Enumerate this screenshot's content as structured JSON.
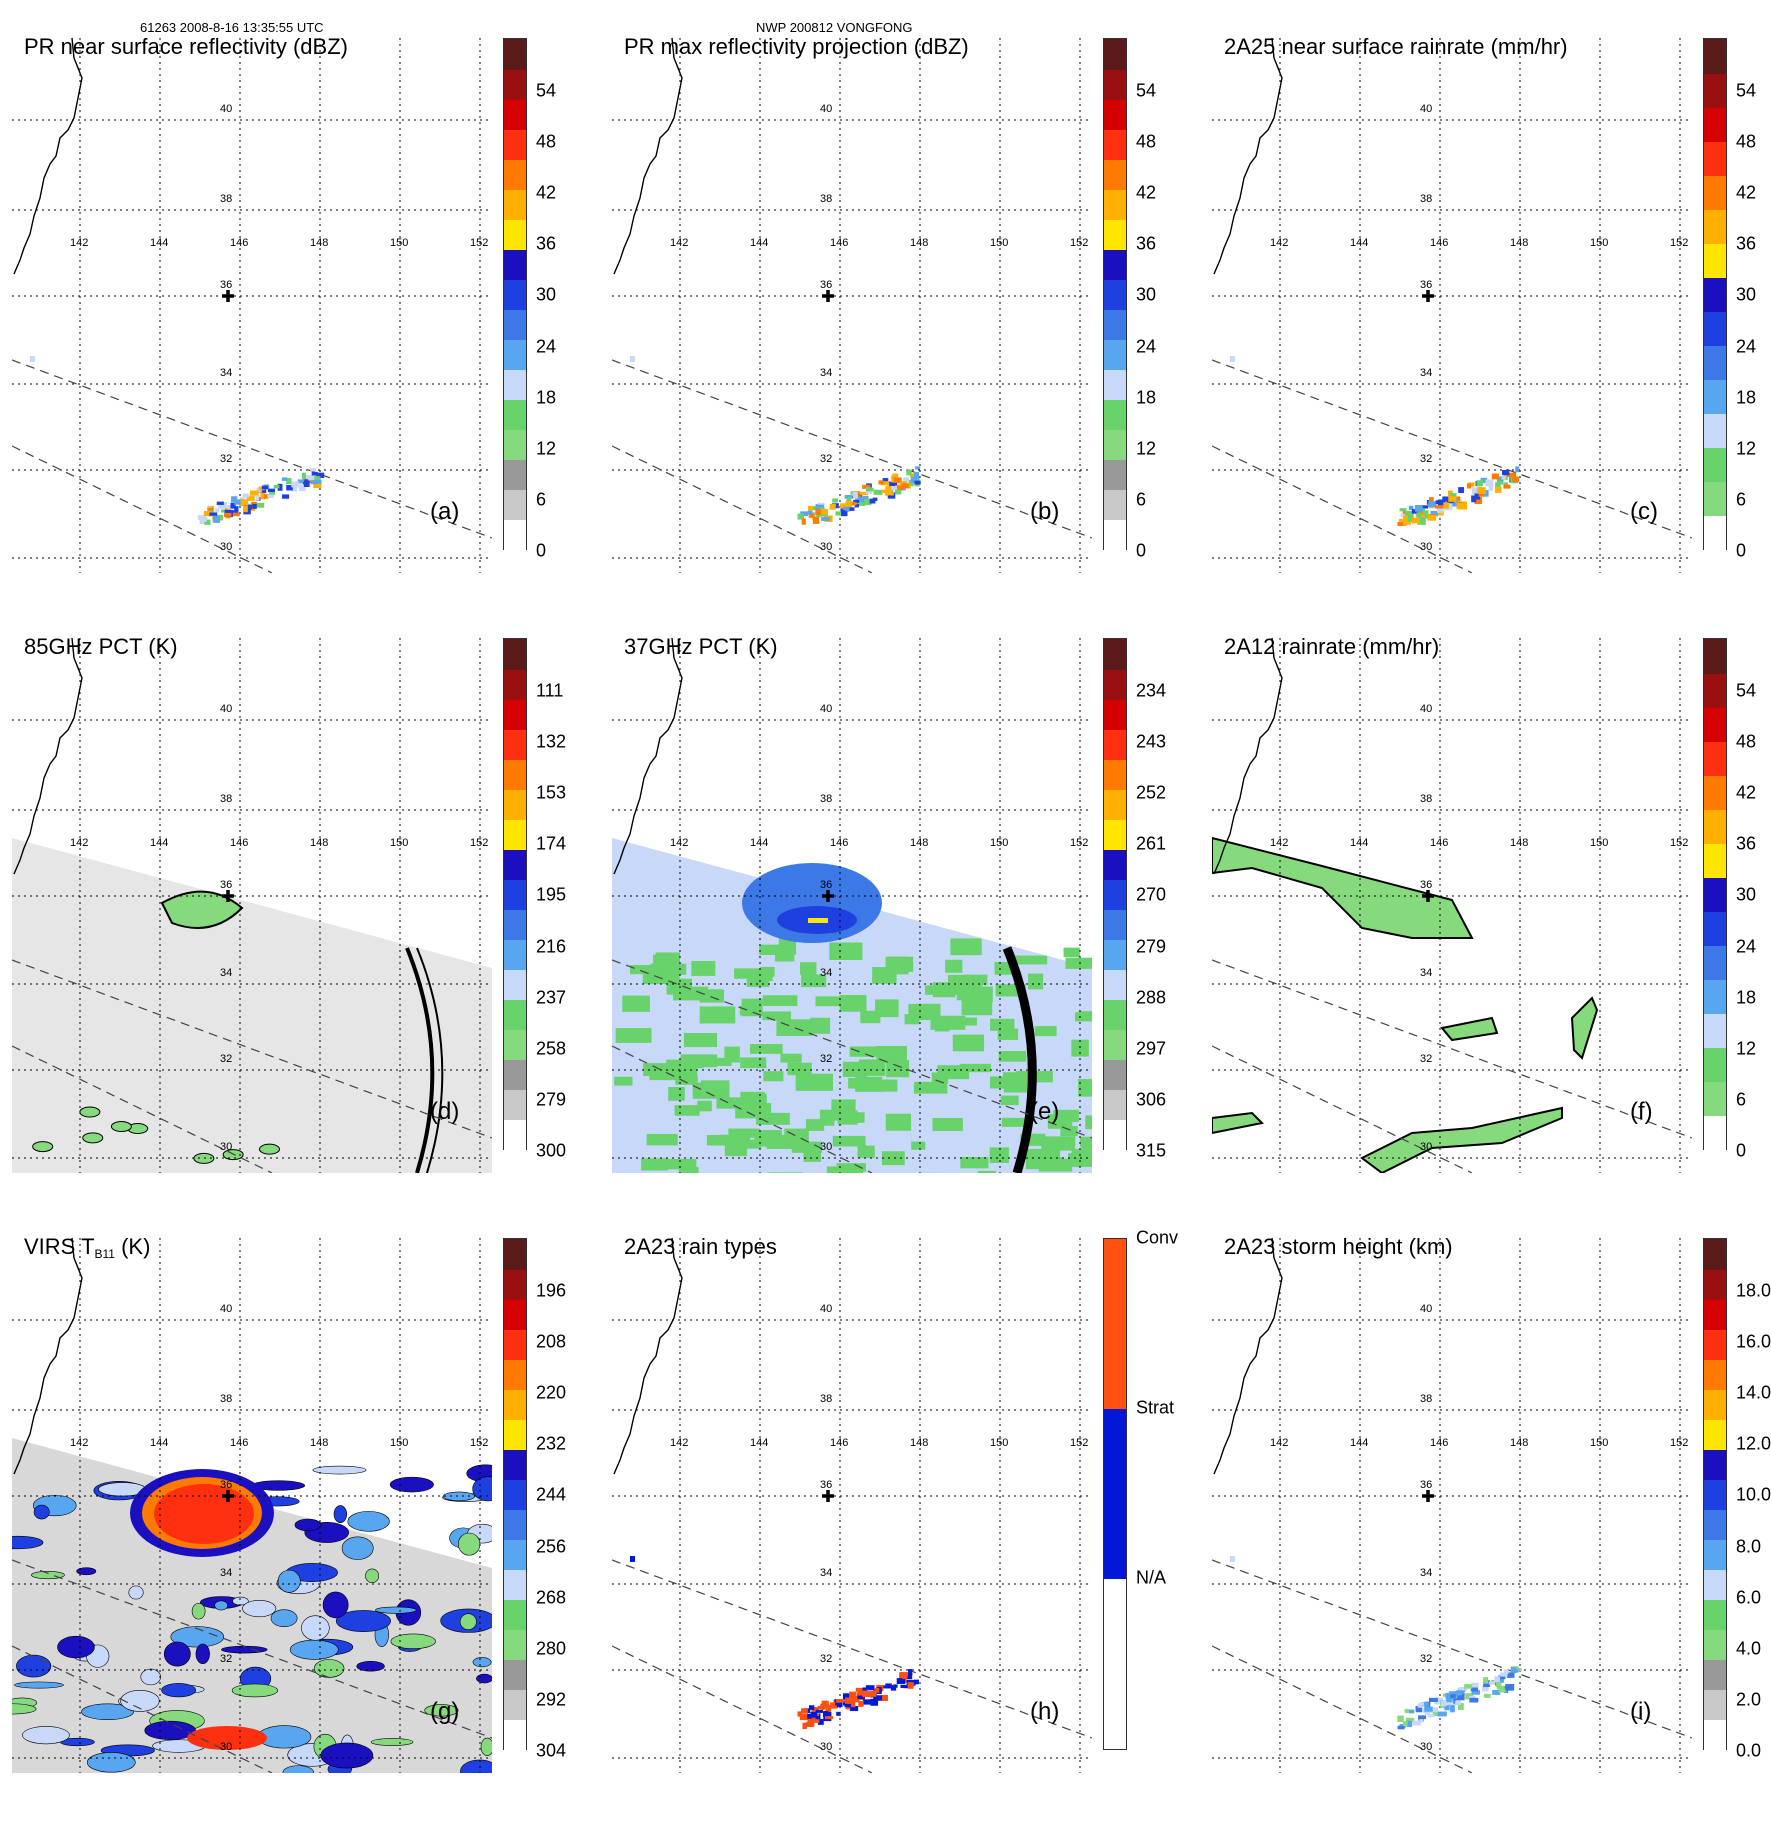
{
  "header": {
    "left": "61263 2008-8-16 13:35:55 UTC",
    "center": "NWP 200812 VONGFONG"
  },
  "map_labels": {
    "longitudes": [
      "142",
      "144",
      "146",
      "148",
      "150",
      "152"
    ],
    "latitudes": [
      "40",
      "38",
      "36",
      "34",
      "32",
      "30"
    ]
  },
  "panels": [
    {
      "id": "a",
      "title": "PR near surface reflectivity (dBZ)",
      "label": "(a)",
      "ticks": [
        "54",
        "48",
        "42",
        "36",
        "30",
        "24",
        "18",
        "12",
        "6",
        "0"
      ],
      "scheme": "dbz",
      "overlay": "pr"
    },
    {
      "id": "b",
      "title": "PR max reflectivity projection (dBZ)",
      "label": "(b)",
      "ticks": [
        "54",
        "48",
        "42",
        "36",
        "30",
        "24",
        "18",
        "12",
        "6",
        "0"
      ],
      "scheme": "dbz",
      "overlay": "pr"
    },
    {
      "id": "c",
      "title": "2A25 near surface rainrate (mm/hr)",
      "label": "(c)",
      "ticks": [
        "54",
        "48",
        "42",
        "36",
        "30",
        "24",
        "18",
        "12",
        "6",
        "0"
      ],
      "scheme": "rain",
      "overlay": "pr"
    },
    {
      "id": "d",
      "title": "85GHz PCT (K)",
      "label": "(d)",
      "ticks": [
        "111",
        "132",
        "153",
        "174",
        "195",
        "216",
        "237",
        "258",
        "279",
        "300"
      ],
      "scheme": "dbz",
      "overlay": "tmi85"
    },
    {
      "id": "e",
      "title": "37GHz PCT (K)",
      "label": "(e)",
      "ticks": [
        "234",
        "243",
        "252",
        "261",
        "270",
        "279",
        "288",
        "297",
        "306",
        "315"
      ],
      "scheme": "dbz",
      "overlay": "tmi37"
    },
    {
      "id": "f",
      "title": "2A12 rainrate (mm/hr)",
      "label": "(f)",
      "ticks": [
        "54",
        "48",
        "42",
        "36",
        "30",
        "24",
        "18",
        "12",
        "6",
        "0"
      ],
      "scheme": "rain",
      "overlay": "tmirain"
    },
    {
      "id": "g",
      "title_main": "VIRS T",
      "title_sub": "B11",
      "title_tail": " (K)",
      "label": "(g)",
      "ticks": [
        "196",
        "208",
        "220",
        "232",
        "244",
        "256",
        "268",
        "280",
        "292",
        "304"
      ],
      "scheme": "dbz",
      "overlay": "virs"
    },
    {
      "id": "h",
      "title": "2A23 rain types",
      "label": "(h)",
      "ticks": [
        "Conv",
        "Strat",
        "N/A"
      ],
      "scheme": "types",
      "overlay": "types"
    },
    {
      "id": "i",
      "title": "2A23 storm height (km)",
      "label": "(i)",
      "ticks": [
        "18.0",
        "16.0",
        "14.0",
        "12.0",
        "10.0",
        "8.0",
        "6.0",
        "4.0",
        "2.0",
        "0.0"
      ],
      "scheme": "dbz",
      "overlay": "height"
    }
  ],
  "colors": {
    "dbz": [
      "#ffffff",
      "#c8c8c8",
      "#999999",
      "#86d97c",
      "#68d26b",
      "#c8d8f8",
      "#58a6f0",
      "#3c78e6",
      "#1e40e0",
      "#1a10c0",
      "#ffe500",
      "#ffb000",
      "#ff7a00",
      "#ff3010",
      "#d60000",
      "#9a1010",
      "#5a1a1a"
    ],
    "types": [
      "#ffffff",
      "#0018d8",
      "#ff5010"
    ]
  }
}
